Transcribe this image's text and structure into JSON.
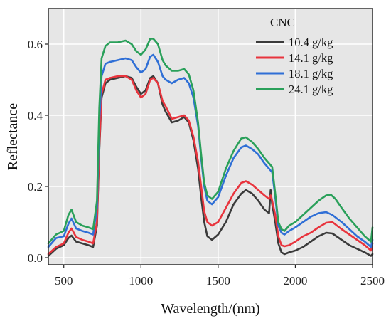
{
  "chart_data": {
    "type": "line",
    "xlabel": "Wavelength/(nm)",
    "ylabel": "Reflectance",
    "xlim": [
      400,
      2500
    ],
    "ylim": [
      -0.02,
      0.7
    ],
    "xticks": [
      500,
      1000,
      1500,
      2000,
      2500
    ],
    "yticks": [
      0.0,
      0.2,
      0.4,
      0.6
    ],
    "ytick_labels": [
      "0.0",
      "0.2",
      "0.4",
      "0.6"
    ],
    "grid": true,
    "legend_title": "CNC",
    "legend_position": "top-right",
    "series": [
      {
        "name": "10.4 g/kg",
        "color": "#3b3b3b",
        "points": [
          [
            400,
            0.005
          ],
          [
            450,
            0.025
          ],
          [
            500,
            0.035
          ],
          [
            530,
            0.055
          ],
          [
            550,
            0.062
          ],
          [
            580,
            0.045
          ],
          [
            620,
            0.04
          ],
          [
            660,
            0.035
          ],
          [
            690,
            0.03
          ],
          [
            715,
            0.09
          ],
          [
            730,
            0.3
          ],
          [
            745,
            0.45
          ],
          [
            770,
            0.49
          ],
          [
            800,
            0.5
          ],
          [
            850,
            0.505
          ],
          [
            900,
            0.51
          ],
          [
            940,
            0.505
          ],
          [
            970,
            0.48
          ],
          [
            1000,
            0.46
          ],
          [
            1030,
            0.47
          ],
          [
            1060,
            0.505
          ],
          [
            1080,
            0.51
          ],
          [
            1110,
            0.49
          ],
          [
            1140,
            0.43
          ],
          [
            1160,
            0.41
          ],
          [
            1200,
            0.38
          ],
          [
            1240,
            0.385
          ],
          [
            1280,
            0.395
          ],
          [
            1310,
            0.38
          ],
          [
            1340,
            0.33
          ],
          [
            1370,
            0.25
          ],
          [
            1390,
            0.17
          ],
          [
            1410,
            0.1
          ],
          [
            1430,
            0.06
          ],
          [
            1460,
            0.05
          ],
          [
            1500,
            0.065
          ],
          [
            1550,
            0.1
          ],
          [
            1600,
            0.15
          ],
          [
            1650,
            0.18
          ],
          [
            1680,
            0.19
          ],
          [
            1720,
            0.18
          ],
          [
            1760,
            0.16
          ],
          [
            1800,
            0.135
          ],
          [
            1830,
            0.125
          ],
          [
            1840,
            0.19
          ],
          [
            1850,
            0.15
          ],
          [
            1870,
            0.1
          ],
          [
            1890,
            0.04
          ],
          [
            1910,
            0.015
          ],
          [
            1930,
            0.01
          ],
          [
            1960,
            0.015
          ],
          [
            2000,
            0.02
          ],
          [
            2050,
            0.03
          ],
          [
            2100,
            0.045
          ],
          [
            2150,
            0.06
          ],
          [
            2200,
            0.07
          ],
          [
            2240,
            0.068
          ],
          [
            2300,
            0.05
          ],
          [
            2350,
            0.035
          ],
          [
            2400,
            0.025
          ],
          [
            2450,
            0.015
          ],
          [
            2490,
            0.005
          ],
          [
            2500,
            0.01
          ]
        ]
      },
      {
        "name": "14.1 g/kg",
        "color": "#e8343d",
        "points": [
          [
            400,
            0.01
          ],
          [
            450,
            0.03
          ],
          [
            500,
            0.04
          ],
          [
            530,
            0.07
          ],
          [
            550,
            0.082
          ],
          [
            580,
            0.058
          ],
          [
            620,
            0.05
          ],
          [
            660,
            0.045
          ],
          [
            690,
            0.04
          ],
          [
            715,
            0.1
          ],
          [
            730,
            0.31
          ],
          [
            745,
            0.46
          ],
          [
            770,
            0.5
          ],
          [
            800,
            0.505
          ],
          [
            850,
            0.51
          ],
          [
            900,
            0.51
          ],
          [
            940,
            0.5
          ],
          [
            970,
            0.47
          ],
          [
            1000,
            0.45
          ],
          [
            1030,
            0.46
          ],
          [
            1060,
            0.5
          ],
          [
            1080,
            0.505
          ],
          [
            1110,
            0.49
          ],
          [
            1140,
            0.44
          ],
          [
            1160,
            0.425
          ],
          [
            1200,
            0.39
          ],
          [
            1240,
            0.395
          ],
          [
            1280,
            0.4
          ],
          [
            1310,
            0.385
          ],
          [
            1340,
            0.34
          ],
          [
            1370,
            0.27
          ],
          [
            1390,
            0.2
          ],
          [
            1410,
            0.13
          ],
          [
            1430,
            0.1
          ],
          [
            1460,
            0.09
          ],
          [
            1500,
            0.1
          ],
          [
            1550,
            0.14
          ],
          [
            1600,
            0.18
          ],
          [
            1650,
            0.21
          ],
          [
            1680,
            0.215
          ],
          [
            1720,
            0.205
          ],
          [
            1760,
            0.19
          ],
          [
            1800,
            0.175
          ],
          [
            1830,
            0.165
          ],
          [
            1840,
            0.175
          ],
          [
            1850,
            0.16
          ],
          [
            1870,
            0.12
          ],
          [
            1890,
            0.06
          ],
          [
            1910,
            0.035
          ],
          [
            1930,
            0.032
          ],
          [
            1960,
            0.035
          ],
          [
            2000,
            0.045
          ],
          [
            2050,
            0.06
          ],
          [
            2100,
            0.07
          ],
          [
            2150,
            0.085
          ],
          [
            2200,
            0.098
          ],
          [
            2240,
            0.1
          ],
          [
            2300,
            0.08
          ],
          [
            2350,
            0.065
          ],
          [
            2400,
            0.05
          ],
          [
            2450,
            0.035
          ],
          [
            2490,
            0.02
          ],
          [
            2500,
            0.04
          ]
        ]
      },
      {
        "name": "18.1 g/kg",
        "color": "#2f6fd6",
        "points": [
          [
            400,
            0.03
          ],
          [
            450,
            0.055
          ],
          [
            500,
            0.06
          ],
          [
            530,
            0.095
          ],
          [
            550,
            0.11
          ],
          [
            580,
            0.082
          ],
          [
            620,
            0.075
          ],
          [
            660,
            0.07
          ],
          [
            690,
            0.065
          ],
          [
            715,
            0.14
          ],
          [
            730,
            0.38
          ],
          [
            745,
            0.51
          ],
          [
            770,
            0.545
          ],
          [
            800,
            0.55
          ],
          [
            850,
            0.555
          ],
          [
            900,
            0.56
          ],
          [
            940,
            0.555
          ],
          [
            970,
            0.535
          ],
          [
            1000,
            0.52
          ],
          [
            1030,
            0.53
          ],
          [
            1060,
            0.565
          ],
          [
            1080,
            0.57
          ],
          [
            1110,
            0.55
          ],
          [
            1140,
            0.51
          ],
          [
            1160,
            0.5
          ],
          [
            1200,
            0.49
          ],
          [
            1240,
            0.5
          ],
          [
            1280,
            0.505
          ],
          [
            1310,
            0.49
          ],
          [
            1340,
            0.45
          ],
          [
            1370,
            0.37
          ],
          [
            1390,
            0.28
          ],
          [
            1410,
            0.2
          ],
          [
            1430,
            0.16
          ],
          [
            1460,
            0.15
          ],
          [
            1500,
            0.17
          ],
          [
            1550,
            0.23
          ],
          [
            1600,
            0.28
          ],
          [
            1650,
            0.31
          ],
          [
            1680,
            0.315
          ],
          [
            1720,
            0.305
          ],
          [
            1760,
            0.29
          ],
          [
            1800,
            0.265
          ],
          [
            1830,
            0.25
          ],
          [
            1850,
            0.24
          ],
          [
            1870,
            0.17
          ],
          [
            1890,
            0.09
          ],
          [
            1910,
            0.07
          ],
          [
            1930,
            0.065
          ],
          [
            1960,
            0.075
          ],
          [
            2000,
            0.085
          ],
          [
            2050,
            0.1
          ],
          [
            2100,
            0.115
          ],
          [
            2150,
            0.125
          ],
          [
            2200,
            0.128
          ],
          [
            2240,
            0.12
          ],
          [
            2300,
            0.1
          ],
          [
            2350,
            0.08
          ],
          [
            2400,
            0.06
          ],
          [
            2450,
            0.045
          ],
          [
            2490,
            0.03
          ],
          [
            2500,
            0.05
          ]
        ]
      },
      {
        "name": "24.1 g/kg",
        "color": "#2aa05a",
        "points": [
          [
            400,
            0.04
          ],
          [
            450,
            0.065
          ],
          [
            500,
            0.075
          ],
          [
            530,
            0.12
          ],
          [
            550,
            0.135
          ],
          [
            580,
            0.1
          ],
          [
            620,
            0.09
          ],
          [
            660,
            0.085
          ],
          [
            690,
            0.08
          ],
          [
            715,
            0.16
          ],
          [
            730,
            0.42
          ],
          [
            745,
            0.56
          ],
          [
            770,
            0.595
          ],
          [
            800,
            0.605
          ],
          [
            850,
            0.605
          ],
          [
            900,
            0.61
          ],
          [
            940,
            0.6
          ],
          [
            970,
            0.58
          ],
          [
            1000,
            0.57
          ],
          [
            1030,
            0.585
          ],
          [
            1060,
            0.615
          ],
          [
            1080,
            0.615
          ],
          [
            1110,
            0.6
          ],
          [
            1140,
            0.555
          ],
          [
            1160,
            0.54
          ],
          [
            1200,
            0.525
          ],
          [
            1240,
            0.525
          ],
          [
            1280,
            0.53
          ],
          [
            1310,
            0.515
          ],
          [
            1340,
            0.47
          ],
          [
            1370,
            0.38
          ],
          [
            1390,
            0.29
          ],
          [
            1410,
            0.21
          ],
          [
            1430,
            0.175
          ],
          [
            1460,
            0.165
          ],
          [
            1500,
            0.185
          ],
          [
            1550,
            0.25
          ],
          [
            1600,
            0.3
          ],
          [
            1650,
            0.335
          ],
          [
            1680,
            0.338
          ],
          [
            1720,
            0.325
          ],
          [
            1760,
            0.305
          ],
          [
            1800,
            0.28
          ],
          [
            1830,
            0.265
          ],
          [
            1850,
            0.255
          ],
          [
            1870,
            0.18
          ],
          [
            1890,
            0.1
          ],
          [
            1910,
            0.08
          ],
          [
            1930,
            0.075
          ],
          [
            1960,
            0.09
          ],
          [
            2000,
            0.1
          ],
          [
            2050,
            0.12
          ],
          [
            2100,
            0.14
          ],
          [
            2150,
            0.16
          ],
          [
            2200,
            0.175
          ],
          [
            2230,
            0.177
          ],
          [
            2260,
            0.165
          ],
          [
            2300,
            0.14
          ],
          [
            2350,
            0.11
          ],
          [
            2400,
            0.085
          ],
          [
            2450,
            0.06
          ],
          [
            2490,
            0.045
          ],
          [
            2500,
            0.085
          ]
        ]
      }
    ]
  }
}
